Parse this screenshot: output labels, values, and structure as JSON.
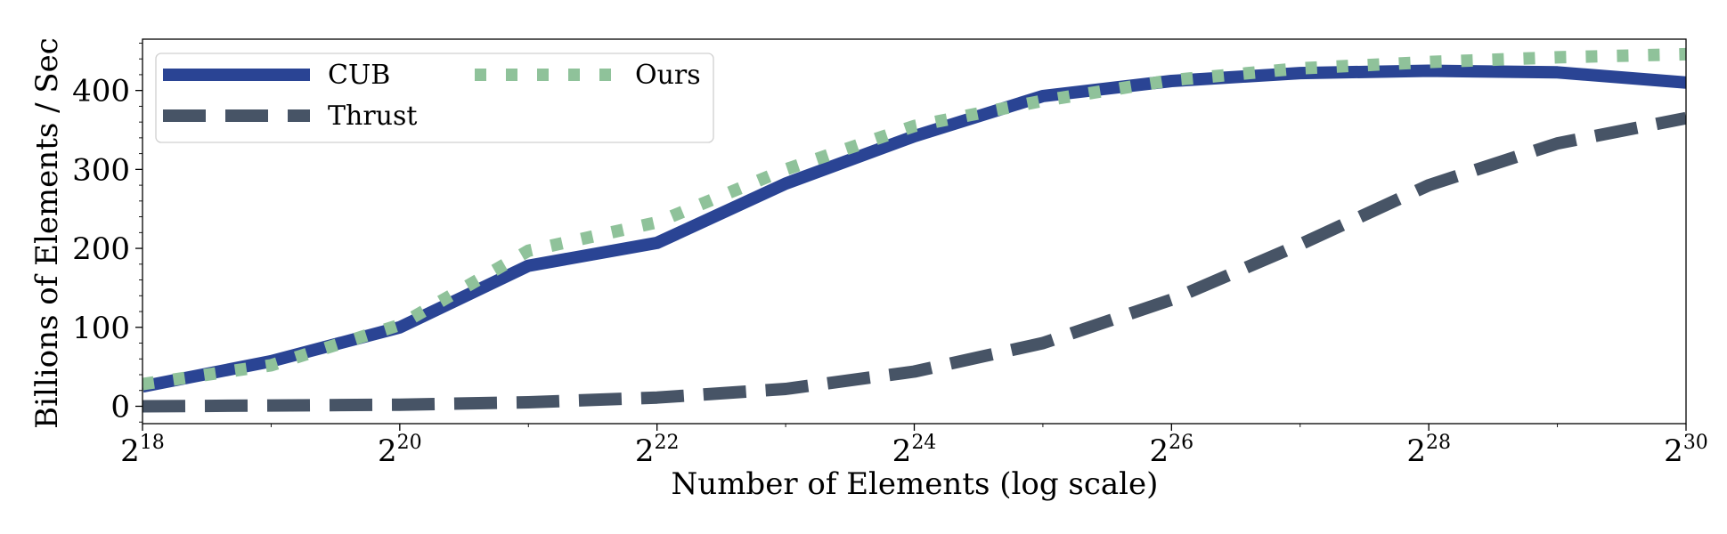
{
  "chart_data": {
    "type": "line",
    "xlabel": "Number of Elements (log scale)",
    "ylabel": "Billions of Elements / Sec",
    "x_scale": "log2",
    "x_exponents": [
      18,
      19,
      20,
      21,
      22,
      23,
      24,
      25,
      26,
      27,
      28,
      29,
      30
    ],
    "x_tick_exponents": [
      "18",
      "20",
      "22",
      "24",
      "26",
      "28",
      "30"
    ],
    "x_tick_base": "2",
    "xlim_exponent": [
      18,
      30
    ],
    "ylim": [
      -22,
      465
    ],
    "y_ticks": [
      0,
      100,
      200,
      300,
      400
    ],
    "y_tick_labels": [
      "0",
      "100",
      "200",
      "300",
      "400"
    ],
    "grid": false,
    "legend_placement": "top-left",
    "series": [
      {
        "name": "CUB",
        "color": "#2a4494",
        "style": "solid",
        "values": [
          25,
          57,
          100,
          178,
          207,
          282,
          342,
          393,
          412,
          422,
          425,
          423,
          410
        ]
      },
      {
        "name": "Thrust",
        "color": "#475466",
        "style": "dashed",
        "values": [
          0,
          1,
          2,
          5,
          11,
          22,
          44,
          80,
          135,
          205,
          280,
          333,
          365
        ]
      },
      {
        "name": "Ours",
        "color": "#8fc29a",
        "style": "dotted",
        "values": [
          28,
          52,
          103,
          197,
          233,
          300,
          355,
          387,
          413,
          428,
          436,
          442,
          446
        ]
      }
    ]
  }
}
